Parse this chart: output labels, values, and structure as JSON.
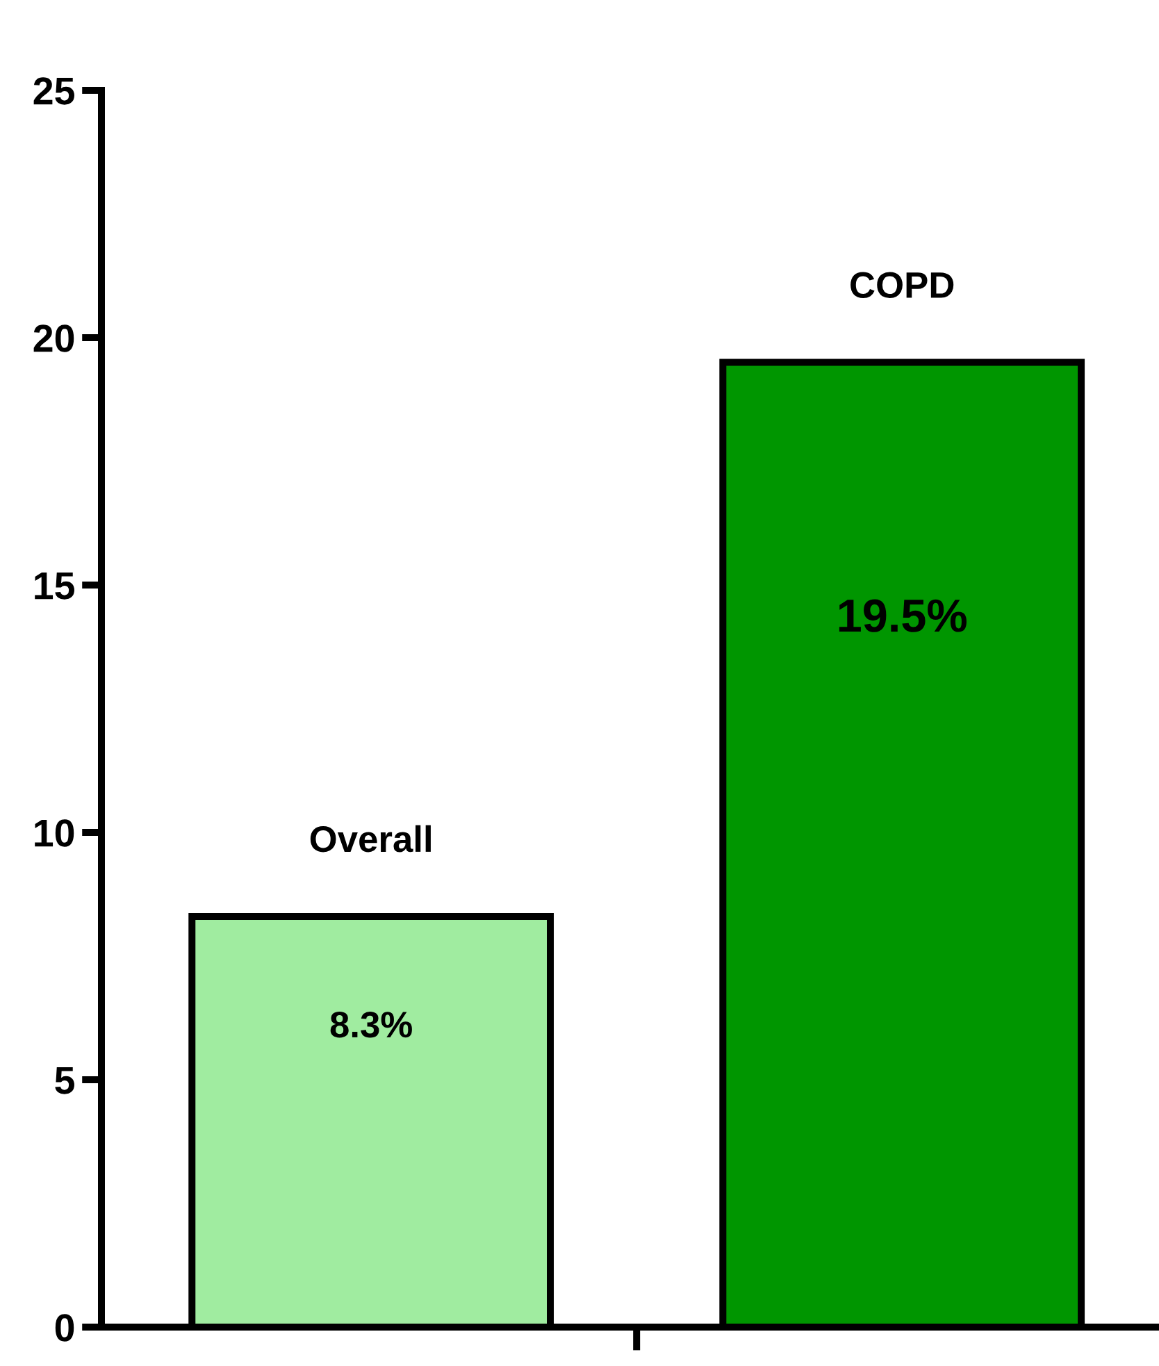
{
  "chart_data": {
    "type": "bar",
    "categories": [
      "Overall",
      "COPD"
    ],
    "values": [
      8.3,
      19.5
    ],
    "colors": [
      "#a0eca0",
      "#009600"
    ],
    "value_labels": [
      "8.3%",
      "19.5%"
    ],
    "ylim": [
      0,
      25
    ],
    "yticks": [
      0,
      5,
      10,
      15,
      20,
      25
    ],
    "grid": false,
    "legend": false
  }
}
